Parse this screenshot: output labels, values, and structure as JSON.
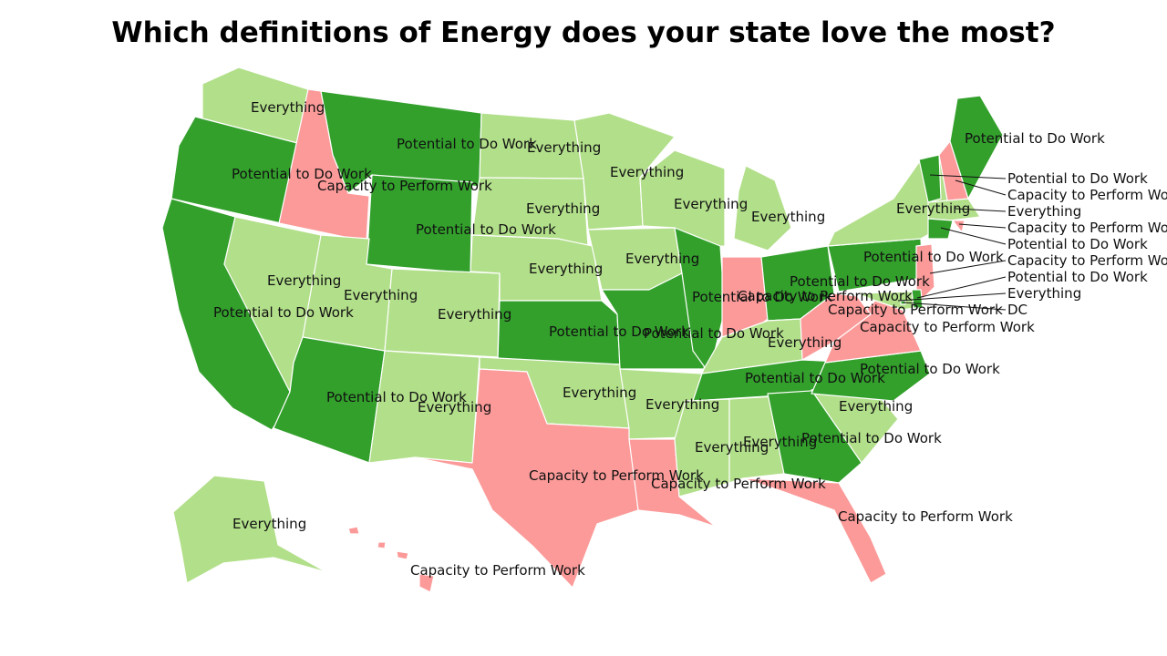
{
  "title": "Which definitions of Energy does your state love the most?",
  "colors": {
    "Potential to Do Work": "#33a02c",
    "Everything": "#b2df8a",
    "Capacity to Perform Work": "#fb9a99"
  },
  "states": [
    {
      "id": "WA",
      "category": "Everything",
      "label": "Everything"
    },
    {
      "id": "OR",
      "category": "Potential to Do Work",
      "label": "Potential to Do Work"
    },
    {
      "id": "CA",
      "category": "Potential to Do Work",
      "label": "Potential to Do Work"
    },
    {
      "id": "ID",
      "category": "Capacity to Perform Work",
      "label": "Capacity to Perform Work"
    },
    {
      "id": "NV",
      "category": "Everything",
      "label": "Everything"
    },
    {
      "id": "MT",
      "category": "Potential to Do Work",
      "label": "Potential to Do Work"
    },
    {
      "id": "WY",
      "category": "Potential to Do Work",
      "label": "Potential to Do Work"
    },
    {
      "id": "UT",
      "category": "Everything",
      "label": "Everything"
    },
    {
      "id": "AZ",
      "category": "Potential to Do Work",
      "label": "Potential to Do Work"
    },
    {
      "id": "CO",
      "category": "Everything",
      "label": "Everything"
    },
    {
      "id": "NM",
      "category": "Everything",
      "label": "Everything"
    },
    {
      "id": "ND",
      "category": "Everything",
      "label": "Everything"
    },
    {
      "id": "SD",
      "category": "Everything",
      "label": "Everything"
    },
    {
      "id": "NE",
      "category": "Everything",
      "label": "Everything"
    },
    {
      "id": "KS",
      "category": "Potential to Do Work",
      "label": "Potential to Do Work"
    },
    {
      "id": "OK",
      "category": "Everything",
      "label": "Everything"
    },
    {
      "id": "TX",
      "category": "Capacity to Perform Work",
      "label": "Capacity to Perform Work"
    },
    {
      "id": "MN",
      "category": "Everything",
      "label": "Everything"
    },
    {
      "id": "IA",
      "category": "Everything",
      "label": "Everything"
    },
    {
      "id": "MO",
      "category": "Potential to Do Work",
      "label": "Potential to Do Work"
    },
    {
      "id": "AR",
      "category": "Everything",
      "label": "Everything"
    },
    {
      "id": "LA",
      "category": "Capacity to Perform Work",
      "label": "Capacity to Perform Work"
    },
    {
      "id": "WI",
      "category": "Everything",
      "label": "Everything"
    },
    {
      "id": "IL",
      "category": "Potential to Do Work",
      "label": "Potential to Do Work"
    },
    {
      "id": "MI",
      "category": "Everything",
      "label": "Everything"
    },
    {
      "id": "IN",
      "category": "Capacity to Perform Work",
      "label": "Capacity to Perform Work"
    },
    {
      "id": "OH",
      "category": "Potential to Do Work",
      "label": "Potential to Do Work"
    },
    {
      "id": "KY",
      "category": "Everything",
      "label": "Everything"
    },
    {
      "id": "TN",
      "category": "Potential to Do Work",
      "label": "Potential to Do Work"
    },
    {
      "id": "MS",
      "category": "Everything",
      "label": "Everything"
    },
    {
      "id": "AL",
      "category": "Everything",
      "label": "Everything"
    },
    {
      "id": "GA",
      "category": "Potential to Do Work",
      "label": "Potential to Do Work"
    },
    {
      "id": "FL",
      "category": "Capacity to Perform Work",
      "label": "Capacity to Perform Work"
    },
    {
      "id": "SC",
      "category": "Everything",
      "label": "Everything"
    },
    {
      "id": "NC",
      "category": "Potential to Do Work",
      "label": "Potential to Do Work"
    },
    {
      "id": "VA",
      "category": "Capacity to Perform Work",
      "label": "Capacity to Perform Work"
    },
    {
      "id": "WV",
      "category": "Capacity to Perform Work",
      "label": "Capacity to Perform Work"
    },
    {
      "id": "PA",
      "category": "Potential to Do Work",
      "label": "Potential to Do Work"
    },
    {
      "id": "NY",
      "category": "Everything",
      "label": "Everything"
    },
    {
      "id": "VT",
      "category": "Potential to Do Work",
      "label": "Potential to Do Work"
    },
    {
      "id": "NH",
      "category": "Capacity to Perform Work",
      "label": "Capacity to Perform Work"
    },
    {
      "id": "ME",
      "category": "Potential to Do Work",
      "label": "Potential to Do Work"
    },
    {
      "id": "MA",
      "category": "Everything",
      "label": "Everything"
    },
    {
      "id": "RI",
      "category": "Capacity to Perform Work",
      "label": "Capacity to Perform Work"
    },
    {
      "id": "CT",
      "category": "Potential to Do Work",
      "label": "Potential to Do Work"
    },
    {
      "id": "NJ",
      "category": "Capacity to Perform Work",
      "label": "Capacity to Perform Work"
    },
    {
      "id": "DE",
      "category": "Potential to Do Work",
      "label": "Potential to Do Work"
    },
    {
      "id": "MD",
      "category": "Everything",
      "label": "Everything"
    },
    {
      "id": "DC",
      "category": "Potential to Do Work",
      "label": "DC"
    },
    {
      "id": "AK",
      "category": "Everything",
      "label": "Everything"
    },
    {
      "id": "HI",
      "category": "Capacity to Perform Work",
      "label": "Capacity to Perform Work"
    }
  ]
}
